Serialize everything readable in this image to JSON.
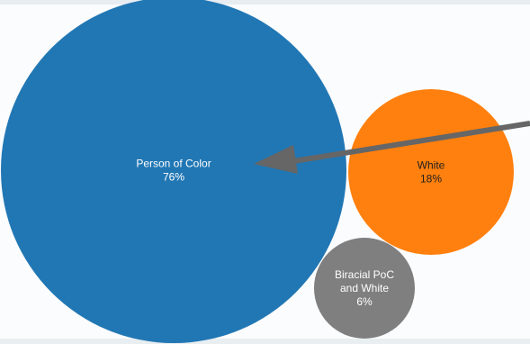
{
  "chart_data": {
    "type": "bubble",
    "series": [
      {
        "label_lines": [
          "Person of Color"
        ],
        "value_label": "76%",
        "value": 76,
        "color": "#2177b4",
        "text_color": "#ffffff"
      },
      {
        "label_lines": [
          "White"
        ],
        "value_label": "18%",
        "value": 18,
        "color": "#ff800e",
        "text_color": "#1f1f1f"
      },
      {
        "label_lines": [
          "Biracial PoC",
          "and White"
        ],
        "value_label": "6%",
        "value": 6,
        "color": "#7f7f7f",
        "text_color": "#ffffff"
      }
    ],
    "annotation": {
      "type": "arrow",
      "points_to": "Person of Color",
      "color": "#666666"
    }
  }
}
